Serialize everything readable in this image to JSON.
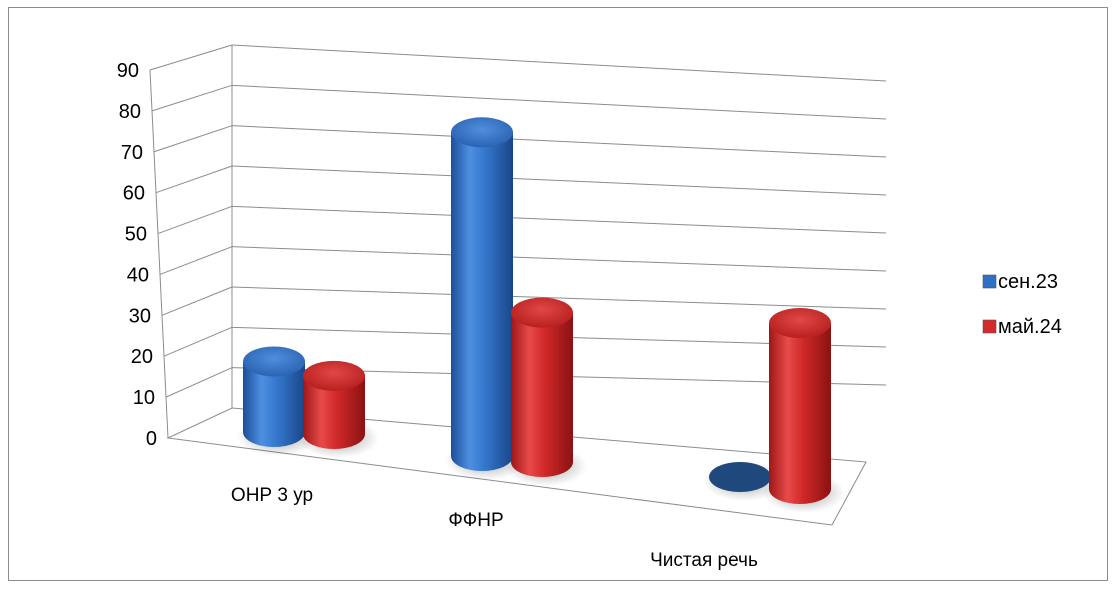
{
  "chart_data": {
    "type": "bar",
    "style": "3d-cylinder",
    "categories": [
      "ОНР 3 ур",
      "ФФНР",
      "Чистая речь"
    ],
    "series": [
      {
        "name": "сен.23",
        "values": [
          17,
          78,
          0
        ],
        "color": "#2f6fc4"
      },
      {
        "name": "май.24",
        "values": [
          14,
          36,
          40
        ],
        "color": "#d52a2a"
      }
    ],
    "ylim": [
      0,
      90
    ],
    "yticks": [
      "0",
      "10",
      "20",
      "30",
      "40",
      "50",
      "60",
      "70",
      "80",
      "90"
    ],
    "grid": true,
    "legend_position": "right"
  }
}
